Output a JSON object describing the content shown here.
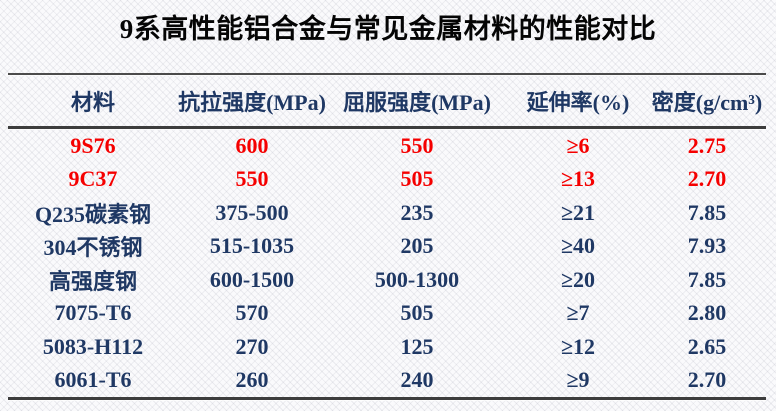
{
  "title": "9系高性能铝合金与常见金属材料的性能对比",
  "colors": {
    "title_text": "#050505",
    "header_text": "#1f3864",
    "body_text": "#1f3864",
    "highlight_text": "#f50000",
    "rule": "#3d3d3d",
    "background": "#fafafc"
  },
  "chart_data": {
    "type": "table",
    "title": "9系高性能铝合金与常见金属材料的性能对比",
    "columns": [
      "材料",
      "抗拉强度(MPa)",
      "屈服强度(MPa)",
      "延伸率(%)",
      "密度(g/cm³)"
    ],
    "rows": [
      [
        "9S76",
        "600",
        "550",
        "≥6",
        "2.75"
      ],
      [
        "9C37",
        "550",
        "505",
        "≥13",
        "2.70"
      ],
      [
        "Q235碳素钢",
        "375-500",
        "235",
        "≥21",
        "7.85"
      ],
      [
        "304不锈钢",
        "515-1035",
        "205",
        "≥40",
        "7.93"
      ],
      [
        "高强度钢",
        "600-1500",
        "500-1300",
        "≥20",
        "7.85"
      ],
      [
        "7075-T6",
        "570",
        "505",
        "≥7",
        "2.80"
      ],
      [
        "5083-H112",
        "270",
        "125",
        "≥12",
        "2.65"
      ],
      [
        "6061-T6",
        "260",
        "240",
        "≥9",
        "2.70"
      ]
    ],
    "highlighted_rows": [
      "9S76",
      "9C37"
    ],
    "highlight_color": "#f50000",
    "layout": {
      "grid": "off",
      "header_rule": "thick",
      "bottom_rule": "thick"
    }
  }
}
